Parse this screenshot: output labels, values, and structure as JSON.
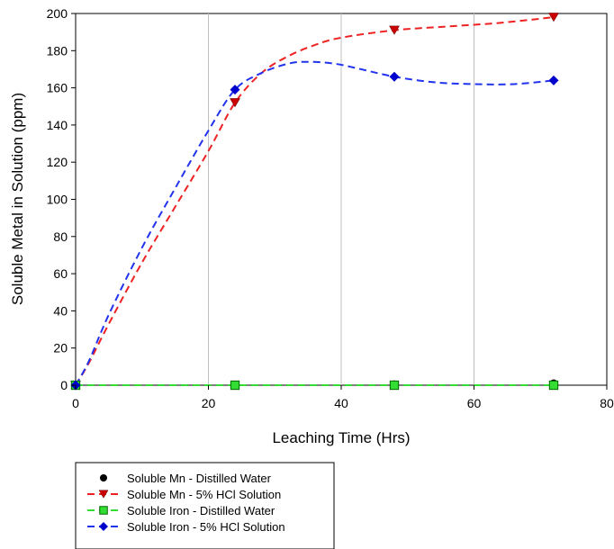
{
  "chart_data": {
    "type": "scatter",
    "xlabel": "Leaching Time (Hrs)",
    "ylabel": "Soluble Metal in Solution (ppm)",
    "xlim": [
      0,
      80
    ],
    "ylim": [
      0,
      200
    ],
    "xticks": [
      0,
      20,
      40,
      60,
      80
    ],
    "yticks": [
      0,
      20,
      40,
      60,
      80,
      100,
      120,
      140,
      160,
      180,
      200
    ],
    "grid": "vertical",
    "legend_position": "bottom-left",
    "series": [
      {
        "name": "Soluble Mn - Distilled Water",
        "marker": "circle",
        "color": "#000000",
        "points": [
          [
            0,
            0
          ],
          [
            24,
            0
          ],
          [
            48,
            0.5
          ],
          [
            72,
            1
          ]
        ]
      },
      {
        "name": "Soluble Mn - 5% HCl Solution",
        "marker": "triangle-down",
        "color": "#cc0000",
        "line_color": "#ee2222",
        "line_style": "dashed",
        "points": [
          [
            0,
            0
          ],
          [
            24,
            152
          ],
          [
            48,
            191
          ],
          [
            72,
            198
          ]
        ],
        "trend": [
          [
            0,
            0
          ],
          [
            2,
            12
          ],
          [
            5,
            33
          ],
          [
            10,
            66
          ],
          [
            15,
            96
          ],
          [
            20,
            126
          ],
          [
            24,
            152
          ],
          [
            28,
            168
          ],
          [
            32,
            177
          ],
          [
            36,
            183
          ],
          [
            40,
            187
          ],
          [
            48,
            191
          ],
          [
            56,
            193
          ],
          [
            64,
            195
          ],
          [
            72,
            198
          ]
        ]
      },
      {
        "name": "Soluble Iron - Distilled Water",
        "marker": "square",
        "color": "#33dd33",
        "line_color": "#33dd33",
        "line_style": "dashed",
        "points": [
          [
            0,
            0
          ],
          [
            24,
            0
          ],
          [
            48,
            0
          ],
          [
            72,
            0
          ]
        ],
        "trend": [
          [
            0,
            0
          ],
          [
            72,
            0
          ]
        ]
      },
      {
        "name": "Soluble Iron - 5% HCl Solution",
        "marker": "diamond",
        "color": "#0000cc",
        "line_color": "#2233ee",
        "line_style": "dashed",
        "points": [
          [
            0,
            0
          ],
          [
            24,
            159
          ],
          [
            48,
            166
          ],
          [
            72,
            164
          ]
        ],
        "trend": [
          [
            0,
            0
          ],
          [
            2,
            13
          ],
          [
            5,
            38
          ],
          [
            10,
            74
          ],
          [
            15,
            106
          ],
          [
            20,
            137
          ],
          [
            24,
            159
          ],
          [
            28,
            168
          ],
          [
            32,
            173
          ],
          [
            35,
            174
          ],
          [
            39,
            173
          ],
          [
            43,
            170
          ],
          [
            48,
            166
          ],
          [
            54,
            163
          ],
          [
            60,
            162
          ],
          [
            66,
            162
          ],
          [
            72,
            164
          ]
        ]
      }
    ]
  }
}
